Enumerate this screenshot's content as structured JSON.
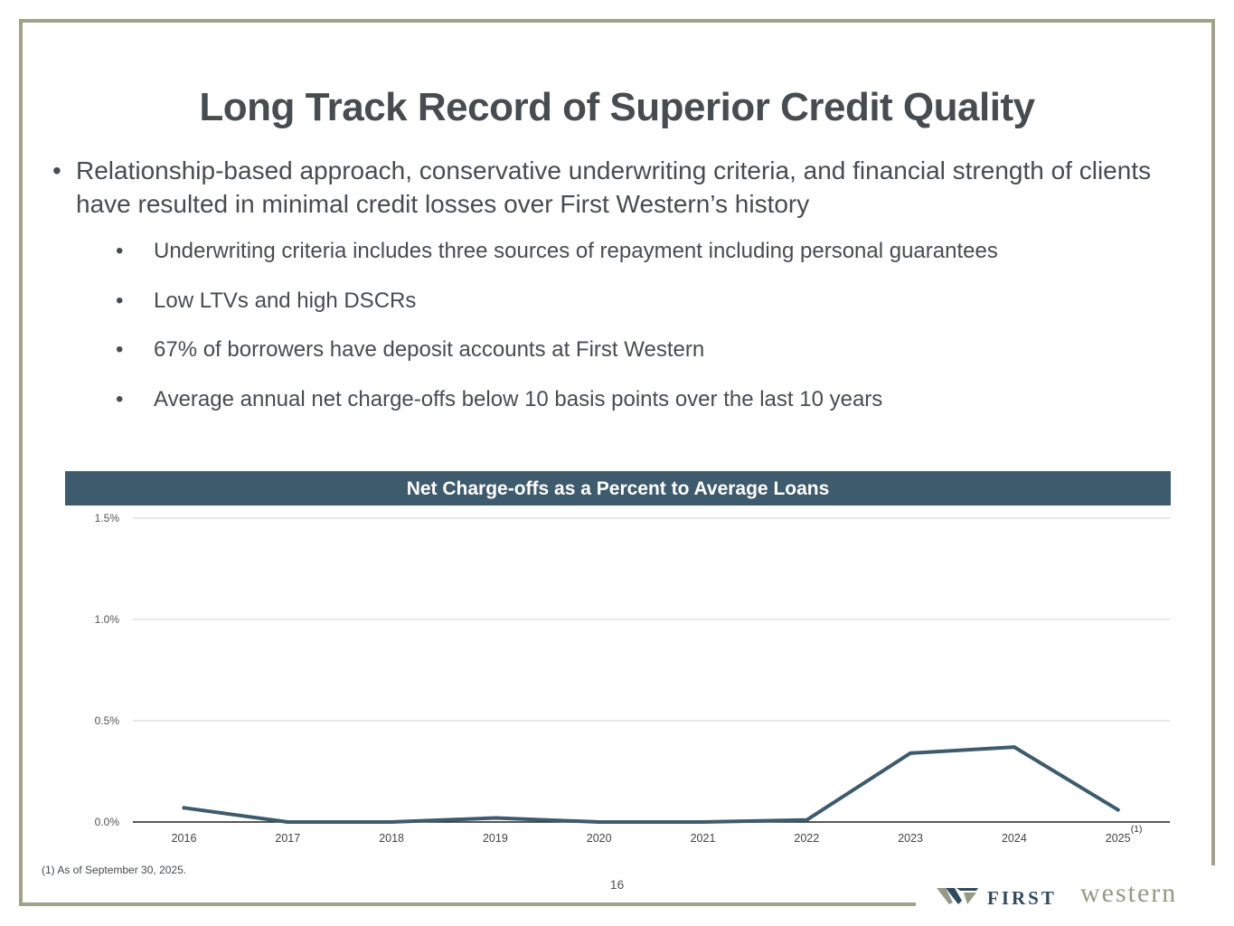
{
  "title": "Long Track Record of Superior Credit Quality",
  "main_bullet": "Relationship-based approach, conservative underwriting criteria, and financial strength of clients have resulted in minimal credit losses over First Western’s history",
  "sub_bullets": [
    "Underwriting criteria includes three sources of repayment including personal guarantees",
    "Low LTVs and high DSCRs",
    "67% of borrowers have deposit accounts at First Western",
    "Average annual net charge-offs below 10 basis points over the last 10 years"
  ],
  "footnote": "(1) As of September 30, 2025.",
  "page_number": "16",
  "logo": {
    "first": "FIRST",
    "western": "western"
  },
  "chart_data": {
    "type": "line",
    "title": "Net Charge-offs as a Percent to Average Loans",
    "x": [
      "2016",
      "2017",
      "2018",
      "2019",
      "2020",
      "2021",
      "2022",
      "2023",
      "2024",
      "2025"
    ],
    "x_note": {
      "category": "2025",
      "label": "(1)"
    },
    "series": [
      {
        "values": [
          0.07,
          0.0,
          0.0,
          0.02,
          0.0,
          0.0,
          0.01,
          0.34,
          0.37,
          0.06
        ]
      }
    ],
    "ylim": [
      0,
      1.5
    ],
    "yticks": [
      0.0,
      0.5,
      1.0,
      1.5
    ],
    "ytick_labels": [
      "0.0%",
      "0.5%",
      "1.0%",
      "1.5%"
    ],
    "grid": true,
    "legend": "none",
    "line_color": "#3e5b6d"
  }
}
